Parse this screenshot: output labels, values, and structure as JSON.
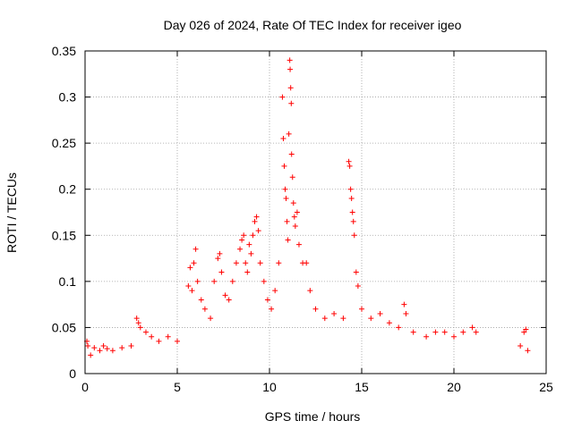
{
  "chart_data": {
    "type": "scatter",
    "title": "Day 026 of 2024, Rate Of TEC Index for receiver igeo",
    "xlabel": "GPS time / hours",
    "ylabel": "ROTI / TECUs",
    "xlim": [
      0,
      25
    ],
    "ylim": [
      0,
      0.35
    ],
    "x_ticks": [
      0,
      5,
      10,
      15,
      20,
      25
    ],
    "x_tick_labels": [
      "0",
      "5",
      "10",
      "15",
      "20",
      "25"
    ],
    "y_ticks": [
      0,
      0.05,
      0.1,
      0.15,
      0.2,
      0.25,
      0.3,
      0.35
    ],
    "y_tick_labels": [
      "0",
      "0.05",
      "0.1",
      "0.15",
      "0.2",
      "0.25",
      "0.3",
      "0.35"
    ],
    "grid": true,
    "marker": "+",
    "color": "#ff0000",
    "series": [
      {
        "points": [
          [
            0.1,
            0.035
          ],
          [
            0.15,
            0.03
          ],
          [
            0.3,
            0.02
          ],
          [
            0.5,
            0.028
          ],
          [
            0.8,
            0.025
          ],
          [
            1.0,
            0.03
          ],
          [
            1.2,
            0.027
          ],
          [
            1.5,
            0.025
          ],
          [
            2.0,
            0.028
          ],
          [
            2.5,
            0.03
          ],
          [
            2.8,
            0.06
          ],
          [
            2.9,
            0.055
          ],
          [
            3.0,
            0.05
          ],
          [
            3.3,
            0.045
          ],
          [
            3.6,
            0.04
          ],
          [
            4.0,
            0.035
          ],
          [
            4.5,
            0.04
          ],
          [
            5.0,
            0.035
          ],
          [
            5.6,
            0.095
          ],
          [
            5.7,
            0.115
          ],
          [
            5.8,
            0.09
          ],
          [
            5.9,
            0.12
          ],
          [
            6.0,
            0.135
          ],
          [
            6.1,
            0.1
          ],
          [
            6.3,
            0.08
          ],
          [
            6.5,
            0.07
          ],
          [
            6.8,
            0.06
          ],
          [
            7.0,
            0.1
          ],
          [
            7.2,
            0.125
          ],
          [
            7.3,
            0.13
          ],
          [
            7.4,
            0.11
          ],
          [
            7.6,
            0.085
          ],
          [
            7.8,
            0.08
          ],
          [
            8.0,
            0.1
          ],
          [
            8.2,
            0.12
          ],
          [
            8.4,
            0.135
          ],
          [
            8.5,
            0.145
          ],
          [
            8.6,
            0.15
          ],
          [
            8.7,
            0.12
          ],
          [
            8.8,
            0.11
          ],
          [
            8.9,
            0.14
          ],
          [
            9.0,
            0.13
          ],
          [
            9.1,
            0.15
          ],
          [
            9.2,
            0.165
          ],
          [
            9.3,
            0.17
          ],
          [
            9.4,
            0.155
          ],
          [
            9.5,
            0.12
          ],
          [
            9.7,
            0.1
          ],
          [
            9.9,
            0.08
          ],
          [
            10.1,
            0.07
          ],
          [
            10.3,
            0.09
          ],
          [
            10.5,
            0.12
          ],
          [
            10.7,
            0.3
          ],
          [
            10.75,
            0.255
          ],
          [
            10.8,
            0.225
          ],
          [
            10.85,
            0.2
          ],
          [
            10.9,
            0.19
          ],
          [
            10.95,
            0.165
          ],
          [
            11.0,
            0.145
          ],
          [
            11.05,
            0.26
          ],
          [
            11.1,
            0.34
          ],
          [
            11.12,
            0.33
          ],
          [
            11.15,
            0.31
          ],
          [
            11.18,
            0.293
          ],
          [
            11.2,
            0.238
          ],
          [
            11.25,
            0.213
          ],
          [
            11.3,
            0.185
          ],
          [
            11.35,
            0.17
          ],
          [
            11.4,
            0.16
          ],
          [
            11.5,
            0.175
          ],
          [
            11.6,
            0.14
          ],
          [
            11.8,
            0.12
          ],
          [
            12.0,
            0.12
          ],
          [
            12.2,
            0.09
          ],
          [
            12.5,
            0.07
          ],
          [
            13.0,
            0.06
          ],
          [
            13.5,
            0.065
          ],
          [
            14.0,
            0.06
          ],
          [
            14.3,
            0.23
          ],
          [
            14.35,
            0.225
          ],
          [
            14.4,
            0.2
          ],
          [
            14.45,
            0.19
          ],
          [
            14.5,
            0.175
          ],
          [
            14.55,
            0.165
          ],
          [
            14.6,
            0.15
          ],
          [
            14.7,
            0.11
          ],
          [
            14.8,
            0.095
          ],
          [
            15.0,
            0.07
          ],
          [
            15.5,
            0.06
          ],
          [
            16.0,
            0.065
          ],
          [
            16.5,
            0.055
          ],
          [
            17.0,
            0.05
          ],
          [
            17.3,
            0.075
          ],
          [
            17.4,
            0.065
          ],
          [
            17.8,
            0.045
          ],
          [
            18.5,
            0.04
          ],
          [
            19.0,
            0.045
          ],
          [
            19.5,
            0.045
          ],
          [
            20.0,
            0.04
          ],
          [
            20.5,
            0.045
          ],
          [
            21.0,
            0.05
          ],
          [
            21.2,
            0.045
          ],
          [
            23.6,
            0.03
          ],
          [
            23.8,
            0.045
          ],
          [
            23.9,
            0.048
          ],
          [
            24.0,
            0.025
          ]
        ]
      }
    ]
  }
}
